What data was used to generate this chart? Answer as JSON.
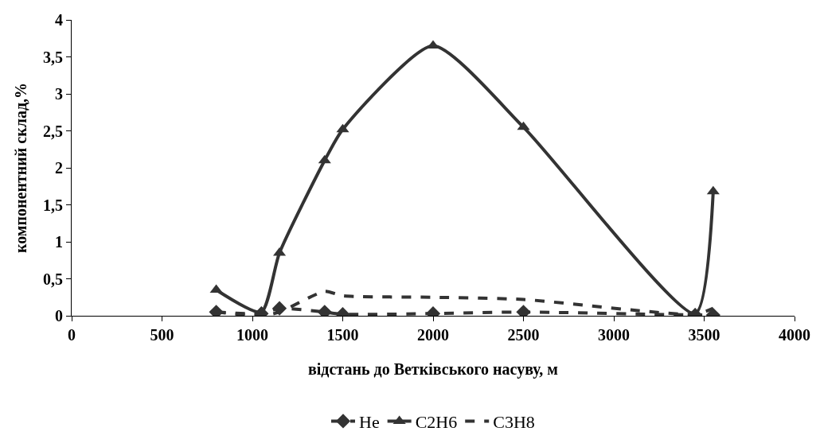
{
  "chart_data": {
    "type": "line",
    "xlabel": "відстань до Ветківського насуву, м",
    "ylabel": "компонентний склад,%",
    "x": [
      800,
      1050,
      1150,
      1400,
      1500,
      2000,
      2500,
      3450,
      3550
    ],
    "series": [
      {
        "name": "He",
        "color": "#333333",
        "marker": "diamond",
        "line_style": "dashed",
        "values": [
          0.05,
          0.03,
          0.1,
          0.05,
          0.02,
          0.03,
          0.05,
          0.01,
          0.01
        ]
      },
      {
        "name": "C2H6",
        "color": "#333333",
        "marker": "triangle",
        "line_style": "solid",
        "values": [
          0.35,
          0.05,
          0.85,
          2.1,
          2.52,
          3.65,
          2.55,
          0.03,
          1.68
        ]
      },
      {
        "name": "C3H8",
        "color": "#333333",
        "marker": "none",
        "line_style": "dashed",
        "values": [
          0.05,
          0.0,
          0.05,
          0.33,
          0.27,
          0.25,
          0.22,
          0.02,
          0.1
        ]
      }
    ],
    "xlim": [
      0,
      4000
    ],
    "xticks": [
      0,
      500,
      1000,
      1500,
      2000,
      2500,
      3000,
      3500,
      4000
    ],
    "ylim": [
      0,
      4
    ],
    "yticks": [
      0,
      {
        "value": 0.5,
        "label": "0,5"
      },
      1,
      {
        "value": 1.5,
        "label": "1,5"
      },
      2,
      {
        "value": 2.5,
        "label": "2,5"
      },
      3,
      {
        "value": 3.5,
        "label": "3,5"
      },
      4
    ],
    "legend": "bottom"
  }
}
